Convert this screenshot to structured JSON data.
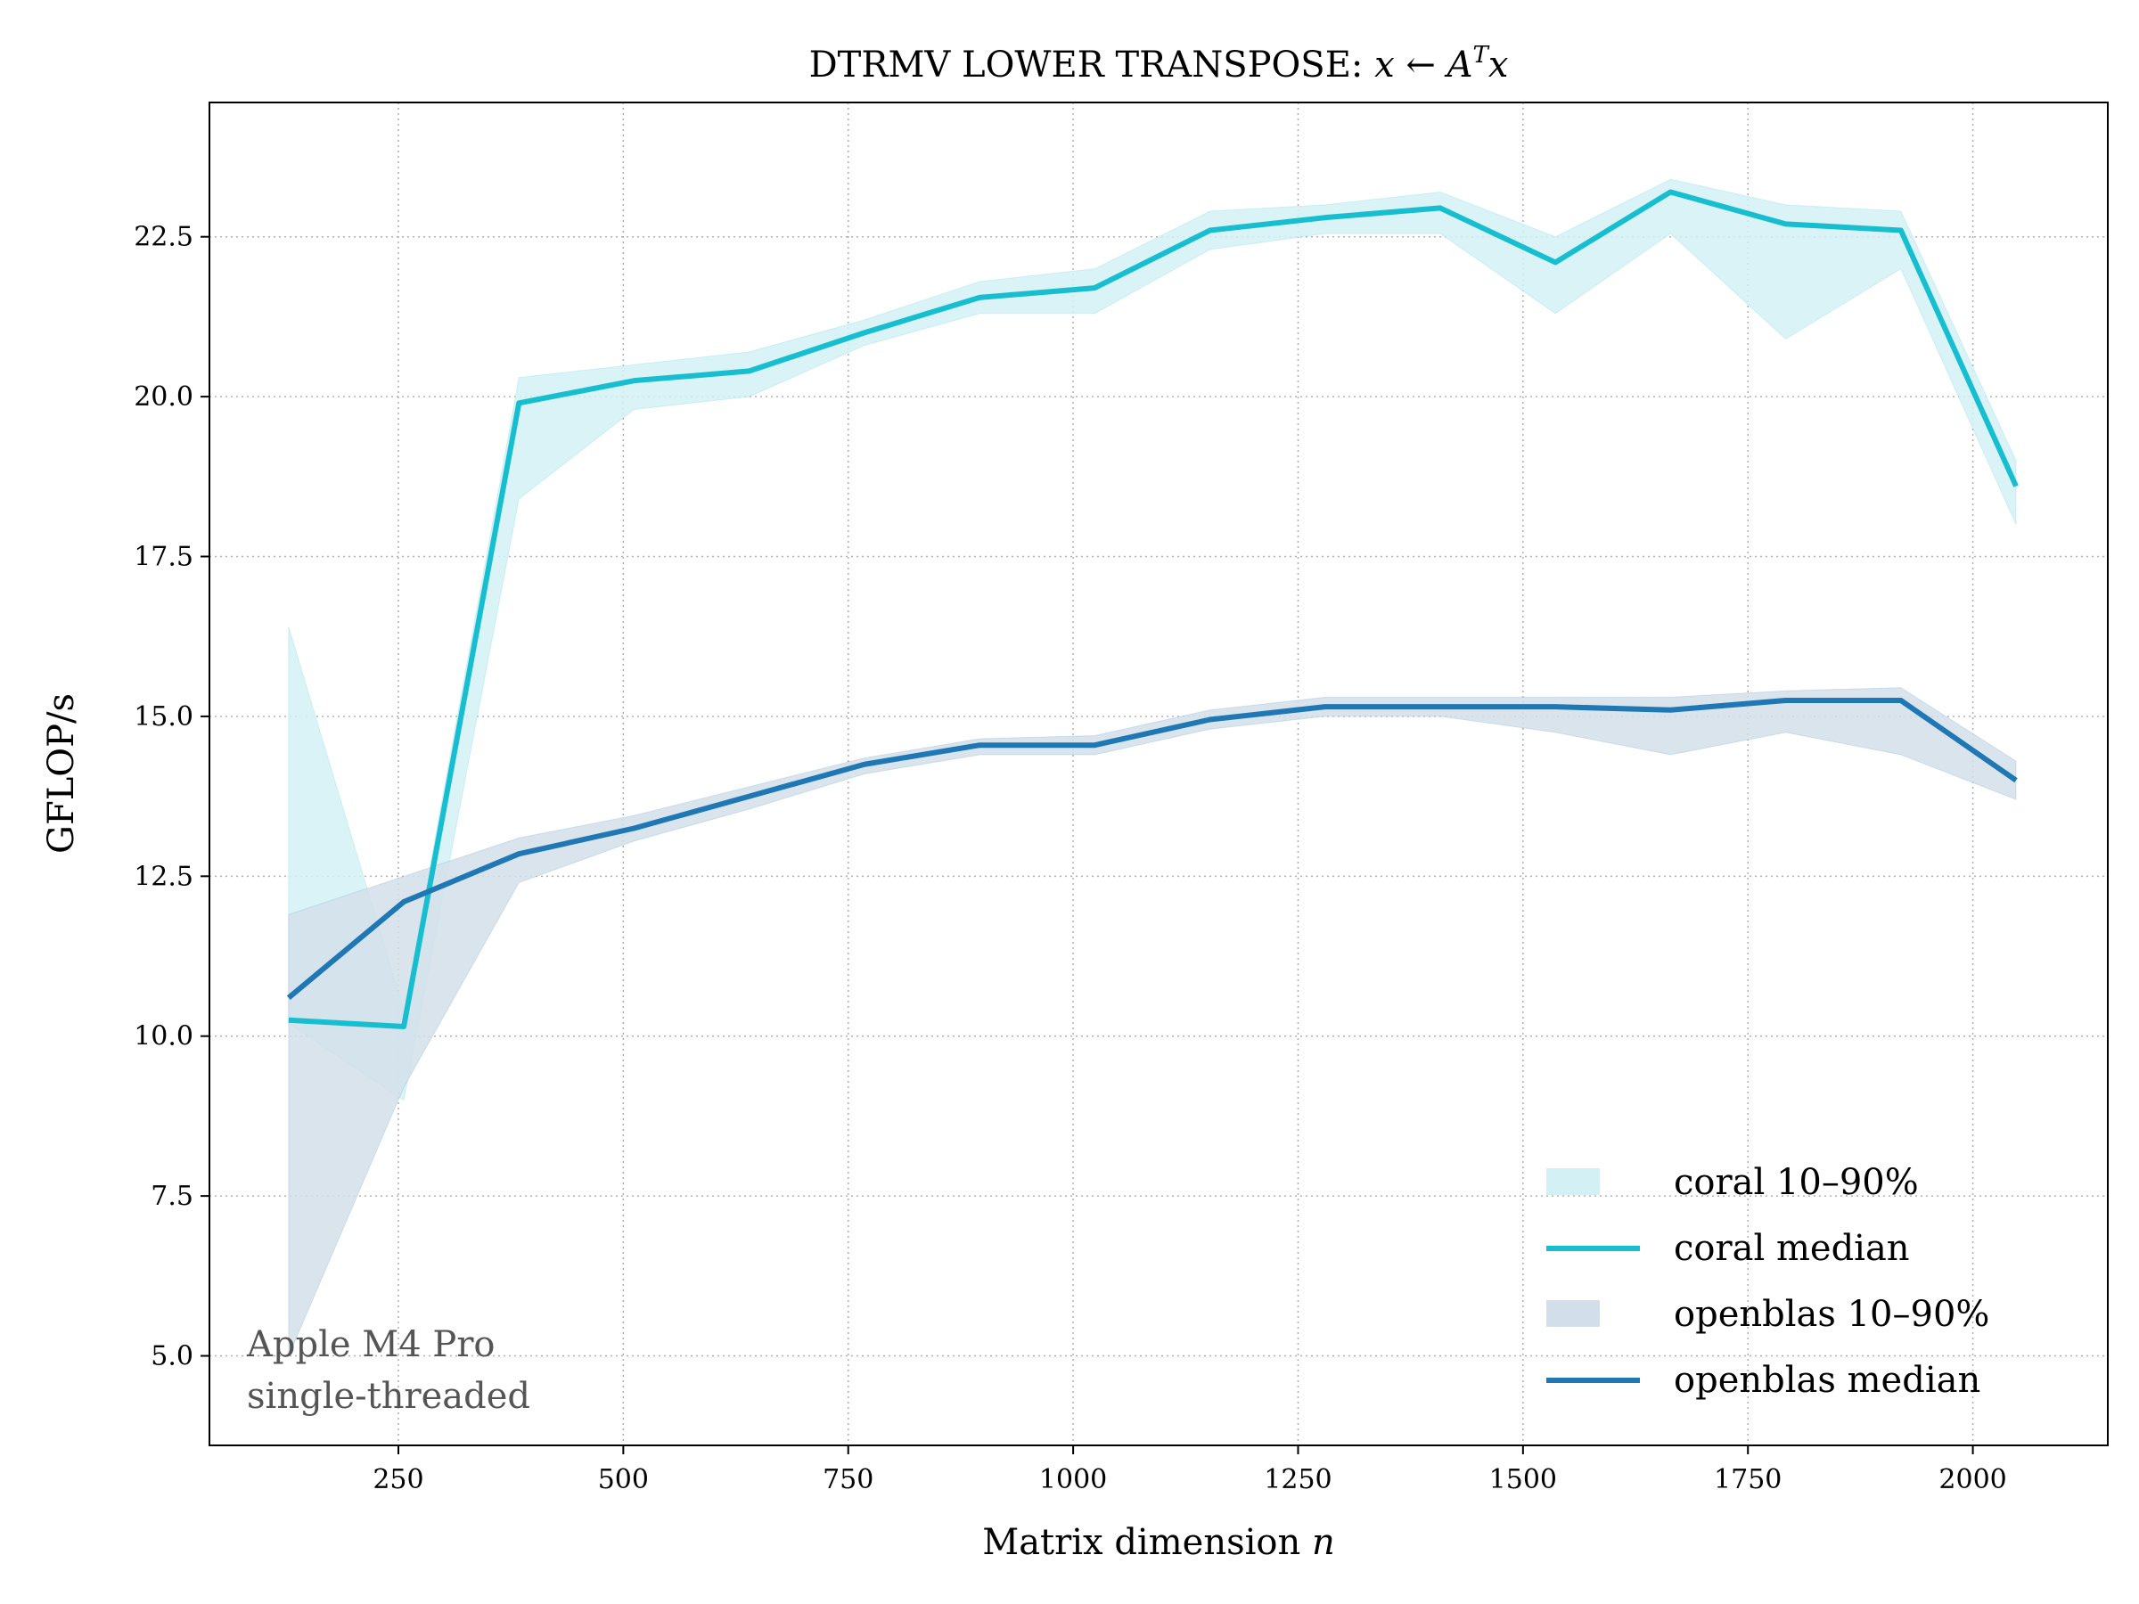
{
  "chart_data": {
    "type": "line",
    "title_prefix": "DTRMV LOWER TRANSPOSE: ",
    "title_math": [
      "x",
      " ← ",
      "A",
      "T",
      "x"
    ],
    "xlabel": "Matrix dimension ",
    "xlabel_var": "n",
    "ylabel": "GFLOP/s",
    "xlim": [
      40,
      2150
    ],
    "ylim": [
      3.6,
      24.6
    ],
    "xticks": [
      250,
      500,
      750,
      1000,
      1250,
      1500,
      1750,
      2000
    ],
    "xtick_labels": [
      "250",
      "500",
      "750",
      "1000",
      "1250",
      "1500",
      "1750",
      "2000"
    ],
    "yticks": [
      5.0,
      7.5,
      10.0,
      12.5,
      15.0,
      17.5,
      20.0,
      22.5
    ],
    "ytick_labels": [
      "5.0",
      "7.5",
      "10.0",
      "12.5",
      "15.0",
      "17.5",
      "20.0",
      "22.5"
    ],
    "grid": true,
    "legend_position": "lower-right",
    "x": [
      128,
      256,
      384,
      512,
      640,
      768,
      896,
      1024,
      1152,
      1280,
      1408,
      1536,
      1664,
      1792,
      1920,
      2048
    ],
    "series": [
      {
        "name": "coral",
        "color": "#17becf",
        "band_color": "#d3f1f4",
        "median_label": "coral median",
        "band_label": "coral 10–90%",
        "median": [
          10.25,
          10.15,
          19.9,
          20.25,
          20.4,
          21.0,
          21.55,
          21.7,
          22.6,
          22.8,
          22.95,
          22.1,
          23.2,
          22.7,
          22.6,
          18.6
        ],
        "p10": [
          10.2,
          9.0,
          18.4,
          19.8,
          20.0,
          20.8,
          21.3,
          21.3,
          22.3,
          22.55,
          22.55,
          21.3,
          22.55,
          20.9,
          22.0,
          18.0
        ],
        "p90": [
          16.4,
          10.4,
          20.3,
          20.5,
          20.7,
          21.2,
          21.8,
          22.0,
          22.9,
          23.0,
          23.2,
          22.5,
          23.4,
          23.0,
          22.9,
          19.0
        ]
      },
      {
        "name": "openblas",
        "color": "#1f77b4",
        "band_color": "#d2dfea",
        "median_label": "openblas median",
        "band_label": "openblas 10–90%",
        "median": [
          10.6,
          12.1,
          12.85,
          13.25,
          13.75,
          14.25,
          14.55,
          14.55,
          14.95,
          15.15,
          15.15,
          15.15,
          15.1,
          15.25,
          15.25,
          14.0
        ],
        "p10": [
          5.0,
          9.2,
          12.4,
          13.05,
          13.55,
          14.1,
          14.4,
          14.4,
          14.8,
          15.0,
          15.0,
          14.75,
          14.4,
          14.75,
          14.4,
          13.7
        ],
        "p90": [
          11.9,
          12.5,
          13.1,
          13.45,
          13.9,
          14.35,
          14.65,
          14.7,
          15.1,
          15.3,
          15.3,
          15.3,
          15.3,
          15.4,
          15.45,
          14.3
        ]
      }
    ],
    "annotation": [
      "Apple M4 Pro",
      "single-threaded"
    ]
  }
}
